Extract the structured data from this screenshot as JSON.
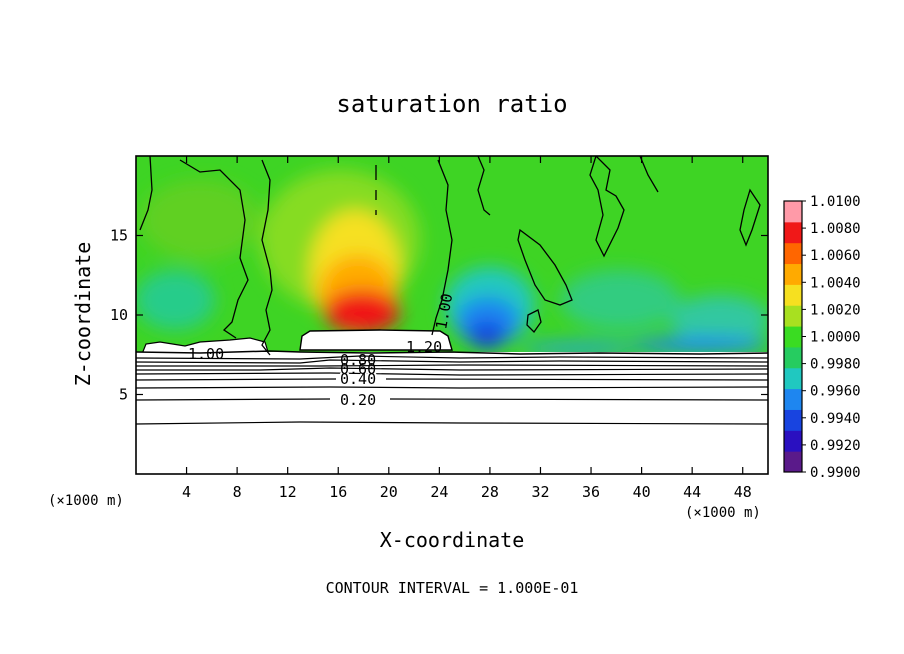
{
  "chart_data": {
    "type": "heatmap",
    "title": "saturation ratio",
    "xlabel": "X-coordinate",
    "ylabel": "Z-coordinate",
    "x_unit_left": "(×1000 m)",
    "x_unit_right": "(×1000 m)",
    "footer": "CONTOUR INTERVAL = 1.000E-01",
    "xlim": [
      0,
      50
    ],
    "ylim": [
      0,
      20
    ],
    "x_ticks": [
      4,
      8,
      12,
      16,
      20,
      24,
      28,
      32,
      36,
      40,
      44,
      48
    ],
    "y_ticks": [
      5,
      10,
      15
    ],
    "colorbar": {
      "min": 0.99,
      "max": 1.01,
      "tick_labels": [
        "1.0100",
        "1.0080",
        "1.0060",
        "1.0040",
        "1.0020",
        "1.0000",
        "0.9980",
        "0.9960",
        "0.9940",
        "0.9920",
        "0.9900"
      ],
      "colors": [
        "#5a1a8a",
        "#2a10c0",
        "#1844e0",
        "#1e86f0",
        "#20c8c0",
        "#26cc60",
        "#3adc22",
        "#a8e020",
        "#f6e020",
        "#ffaa00",
        "#ff6600",
        "#f01818",
        "#ff9aa8"
      ]
    },
    "contour_labels": [
      {
        "text": "0.20",
        "x": 19.3,
        "z": 4.7
      },
      {
        "text": "0.40",
        "x": 17.9,
        "z": 5.8
      },
      {
        "text": "0.60",
        "x": 17.9,
        "z": 6.4
      },
      {
        "text": "0.80",
        "x": 17.9,
        "z": 6.9
      },
      {
        "text": "1.20",
        "x": 22.9,
        "z": 8.0
      },
      {
        "text": "1.00",
        "x": 23.8,
        "z": 10.0
      },
      {
        "text": "1.00",
        "x": 5.5,
        "z": 7.7
      }
    ],
    "contour_levels_subsaturated": [
      0.2,
      0.3,
      0.4,
      0.5,
      0.6,
      0.7,
      0.8,
      0.9
    ],
    "cloud_base_z": 7.5,
    "max_value_region": {
      "x": [
        14,
        24
      ],
      "z": [
        8.5,
        14
      ],
      "value": 1.007
    },
    "min_value_region": {
      "x": [
        26,
        31
      ],
      "z": [
        7.8,
        10.5
      ],
      "value": 0.993
    }
  }
}
